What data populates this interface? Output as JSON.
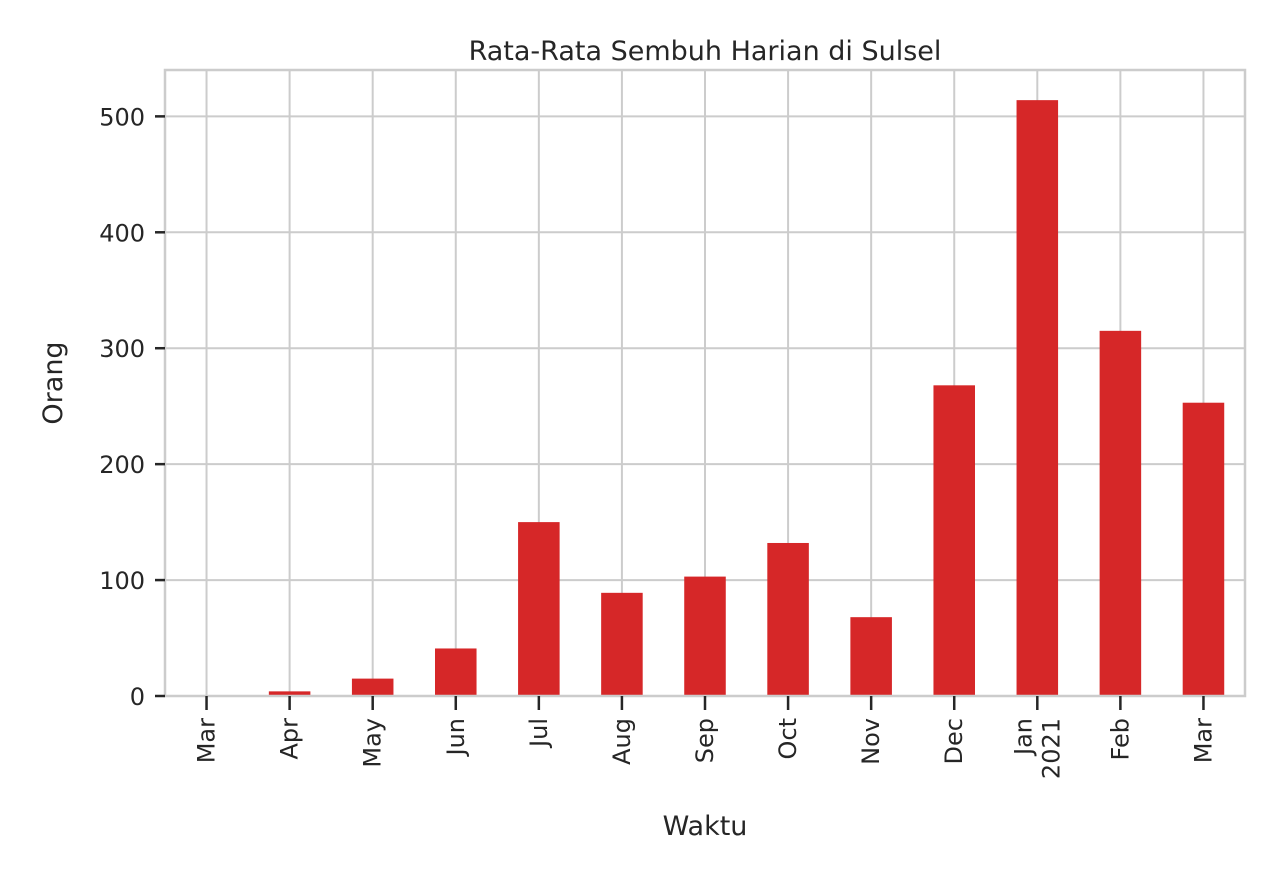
{
  "chart_data": {
    "type": "bar",
    "title": "Rata-Rata Sembuh Harian di Sulsel",
    "xlabel": "Waktu",
    "ylabel": "Orang",
    "categories": [
      "Mar",
      "Apr",
      "May",
      "Jun",
      "Jul",
      "Aug",
      "Sep",
      "Oct",
      "Nov",
      "Dec",
      "Jan\n2021",
      "Feb",
      "Mar"
    ],
    "values": [
      0,
      4,
      15,
      41,
      150,
      89,
      103,
      132,
      68,
      268,
      514,
      315,
      253
    ],
    "ylim": [
      0,
      540
    ],
    "yticks": [
      0,
      100,
      200,
      300,
      400,
      500
    ],
    "grid": true,
    "bar_color": "#d62728",
    "grid_color": "#cccccc",
    "text_color": "#262626"
  }
}
